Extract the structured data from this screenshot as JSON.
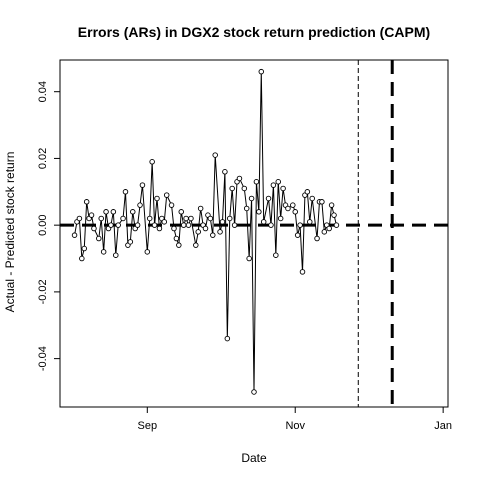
{
  "chart_data": {
    "type": "line",
    "title": "Errors (ARs) in DGX2 stock return prediction (CAPM)",
    "xlabel": "Date",
    "ylabel": "Actual - Predicted stock return",
    "x_ticks": [
      {
        "label": "Sep",
        "value": 30
      },
      {
        "label": "Nov",
        "value": 91
      },
      {
        "label": "Jan",
        "value": 152
      }
    ],
    "y_ticks": [
      -0.04,
      -0.02,
      0.0,
      0.02,
      0.04
    ],
    "y_tick_labels": [
      "-0.04",
      "-0.02",
      "0.00",
      "0.02",
      "0.04"
    ],
    "xlim": [
      -6,
      154
    ],
    "ylim": [
      -0.0545,
      0.0495
    ],
    "reference_lines": [
      {
        "orientation": "horizontal",
        "y": 0,
        "style": "thick-dashed"
      },
      {
        "orientation": "vertical",
        "x": 117,
        "style": "thin-dashed"
      },
      {
        "orientation": "vertical",
        "x": 131,
        "style": "thick-dashed"
      }
    ],
    "series": [
      {
        "points": [
          [
            0,
            -0.003
          ],
          [
            1,
            0.001
          ],
          [
            2,
            0.002
          ],
          [
            3,
            -0.01
          ],
          [
            4,
            -0.007
          ],
          [
            5,
            0.007
          ],
          [
            6,
            0.002
          ],
          [
            7,
            0.003
          ],
          [
            8,
            -0.001
          ],
          [
            10,
            -0.004
          ],
          [
            11,
            0.002
          ],
          [
            12,
            -0.008
          ],
          [
            13,
            0.004
          ],
          [
            14,
            -0.001
          ],
          [
            15,
            0.0
          ],
          [
            16,
            0.004
          ],
          [
            17,
            -0.009
          ],
          [
            18,
            0.0
          ],
          [
            20,
            0.002
          ],
          [
            21,
            0.01
          ],
          [
            22,
            -0.006
          ],
          [
            23,
            -0.005
          ],
          [
            24,
            0.004
          ],
          [
            25,
            -0.001
          ],
          [
            26,
            0.0
          ],
          [
            27,
            0.006
          ],
          [
            28,
            0.012
          ],
          [
            30,
            -0.008
          ],
          [
            31,
            0.002
          ],
          [
            32,
            0.019
          ],
          [
            33,
            0.0
          ],
          [
            34,
            0.008
          ],
          [
            35,
            -0.001
          ],
          [
            36,
            0.002
          ],
          [
            37,
            0.001
          ],
          [
            38,
            0.009
          ],
          [
            40,
            0.006
          ],
          [
            41,
            -0.001
          ],
          [
            42,
            -0.004
          ],
          [
            43,
            -0.006
          ],
          [
            44,
            0.004
          ],
          [
            45,
            0.0
          ],
          [
            46,
            0.002
          ],
          [
            47,
            0.0
          ],
          [
            48,
            0.002
          ],
          [
            50,
            -0.006
          ],
          [
            51,
            -0.002
          ],
          [
            52,
            0.005
          ],
          [
            53,
            0.0
          ],
          [
            54,
            -0.001
          ],
          [
            55,
            0.003
          ],
          [
            56,
            0.002
          ],
          [
            57,
            -0.003
          ],
          [
            58,
            0.021
          ],
          [
            60,
            -0.002
          ],
          [
            61,
            0.001
          ],
          [
            62,
            0.016
          ],
          [
            63,
            -0.034
          ],
          [
            64,
            0.002
          ],
          [
            65,
            0.011
          ],
          [
            66,
            0.0
          ],
          [
            67,
            0.013
          ],
          [
            68,
            0.014
          ],
          [
            70,
            0.011
          ],
          [
            71,
            0.005
          ],
          [
            72,
            -0.01
          ],
          [
            73,
            0.008
          ],
          [
            74,
            -0.05
          ],
          [
            75,
            0.013
          ],
          [
            76,
            0.004
          ],
          [
            77,
            0.046
          ],
          [
            78,
            0.001
          ],
          [
            80,
            0.008
          ],
          [
            81,
            0.0
          ],
          [
            82,
            0.012
          ],
          [
            83,
            -0.009
          ],
          [
            84,
            0.013
          ],
          [
            85,
            0.002
          ],
          [
            86,
            0.011
          ],
          [
            87,
            0.006
          ],
          [
            88,
            0.005
          ],
          [
            90,
            0.006
          ],
          [
            91,
            0.004
          ],
          [
            92,
            -0.003
          ],
          [
            93,
            0.0
          ],
          [
            94,
            -0.014
          ],
          [
            95,
            0.009
          ],
          [
            96,
            0.01
          ],
          [
            97,
            0.001
          ],
          [
            98,
            0.008
          ],
          [
            100,
            -0.004
          ],
          [
            101,
            0.007
          ],
          [
            102,
            0.007
          ],
          [
            103,
            -0.002
          ],
          [
            104,
            0.0
          ],
          [
            105,
            -0.001
          ],
          [
            106,
            0.006
          ],
          [
            107,
            0.003
          ],
          [
            108,
            0.0
          ]
        ]
      }
    ]
  }
}
